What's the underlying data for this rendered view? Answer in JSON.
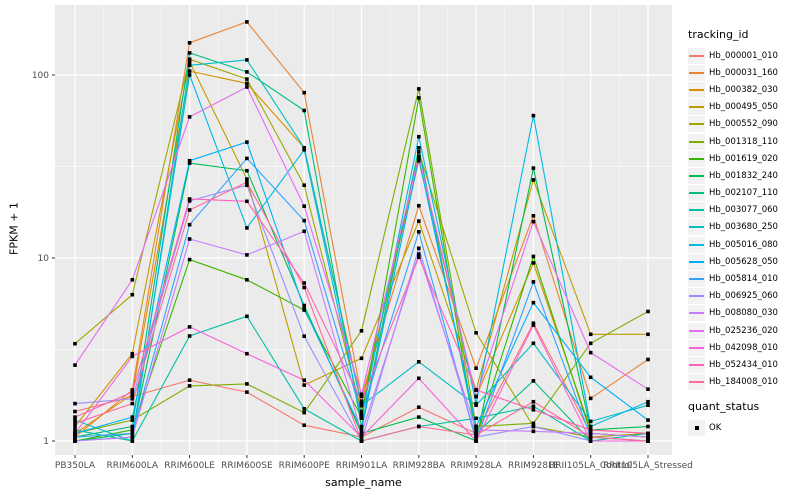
{
  "chart_data": {
    "type": "line",
    "title": "",
    "xlabel": "sample_name",
    "ylabel": "FPKM + 1",
    "y_scale": "log10",
    "ylim": [
      1,
      240
    ],
    "y_ticks": [
      1,
      10,
      100
    ],
    "y_minor_ticks": [
      3.162,
      31.62
    ],
    "grid": "on",
    "legend_position": "right",
    "point_marker": "black-square",
    "categories": [
      "PB350LA",
      "RRIM600LA",
      "RRIM600LE",
      "RRIM600SE",
      "RRIM600PE",
      "RRIM901LA",
      "RRIM928BA",
      "RRIM928LA",
      "RRIM928LE",
      "RRII105LA_Control",
      "RRII105LA_Stressed"
    ],
    "series": [
      {
        "name": "Hb_000001_010",
        "color": "#F8766D",
        "values": [
          1.45,
          1.75,
          2.15,
          1.85,
          1.22,
          1.05,
          1.53,
          1.1,
          4.4,
          1.1,
          1.05
        ]
      },
      {
        "name": "Hb_000031_160",
        "color": "#EA8331",
        "values": [
          1.05,
          1.9,
          150,
          195,
          80,
          1.75,
          19.3,
          2.5,
          17.0,
          1.71,
          2.79
        ]
      },
      {
        "name": "Hb_000382_030",
        "color": "#D89000",
        "values": [
          1.1,
          1.8,
          105,
          90,
          40,
          1.6,
          34,
          1.75,
          9.4,
          1.15,
          1.1
        ]
      },
      {
        "name": "Hb_000495_050",
        "color": "#C09B00",
        "values": [
          1.2,
          3.0,
          118,
          27,
          2.02,
          2.83,
          15.9,
          1.9,
          26.7,
          3.83,
          3.83
        ]
      },
      {
        "name": "Hb_000552_090",
        "color": "#A3A500",
        "values": [
          3.4,
          6.3,
          122,
          95,
          25,
          1.45,
          38,
          3.9,
          1.2,
          1.05,
          1.1
        ]
      },
      {
        "name": "Hb_001318_110",
        "color": "#7CAE00",
        "values": [
          1.1,
          1.3,
          2.0,
          2.05,
          1.43,
          4.0,
          84,
          1.2,
          1.25,
          3.42,
          5.1
        ]
      },
      {
        "name": "Hb_001619_020",
        "color": "#39B600",
        "values": [
          1.0,
          1.15,
          9.8,
          7.6,
          5.2,
          1.35,
          75,
          1.05,
          10.2,
          1.1,
          1.05
        ]
      },
      {
        "name": "Hb_001832_240",
        "color": "#00BB4E",
        "values": [
          1.0,
          1.1,
          33,
          30,
          5.5,
          1.1,
          1.35,
          1.0,
          31,
          1.15,
          1.2
        ]
      },
      {
        "name": "Hb_002107_110",
        "color": "#00BF7D",
        "values": [
          1.05,
          1.2,
          132,
          104,
          64,
          1.2,
          40,
          1.1,
          2.13,
          1.0,
          1.0
        ]
      },
      {
        "name": "Hb_003077_060",
        "color": "#00C1A3",
        "values": [
          1.15,
          1.0,
          3.75,
          4.8,
          1.5,
          1.0,
          1.2,
          1.33,
          1.55,
          1.0,
          1.1
        ]
      },
      {
        "name": "Hb_003680_250",
        "color": "#00BFC4",
        "values": [
          1.3,
          1.0,
          113,
          121,
          40,
          1.56,
          2.71,
          1.57,
          3.42,
          1.28,
          1.57
        ]
      },
      {
        "name": "Hb_005016_080",
        "color": "#00BAE0",
        "values": [
          1.0,
          1.05,
          100,
          14.6,
          39,
          1.33,
          46,
          1.6,
          60,
          1.2,
          1.64
        ]
      },
      {
        "name": "Hb_005628_050",
        "color": "#00B0F6",
        "values": [
          1.1,
          1.35,
          34,
          43,
          5.3,
          1.15,
          35,
          1.2,
          5.7,
          2.23,
          1.3
        ]
      },
      {
        "name": "Hb_005814_010",
        "color": "#35A2FF",
        "values": [
          1.05,
          1.1,
          15.2,
          35,
          16,
          1.4,
          13.9,
          1.0,
          7.4,
          1.05,
          1.0
        ]
      },
      {
        "name": "Hb_006925_060",
        "color": "#9590FF",
        "values": [
          1.6,
          1.7,
          20.5,
          25,
          3.74,
          1.0,
          11.3,
          1.05,
          1.2,
          1.0,
          1.0
        ]
      },
      {
        "name": "Hb_008080_030",
        "color": "#C77CFF",
        "values": [
          1.0,
          1.05,
          12.7,
          10.4,
          14,
          1.1,
          10.5,
          1.15,
          1.13,
          1.1,
          1.05
        ]
      },
      {
        "name": "Hb_025236_020",
        "color": "#E76BF3",
        "values": [
          2.6,
          7.6,
          59,
          86,
          19.2,
          1.8,
          36,
          1.75,
          15.8,
          3.04,
          1.92
        ]
      },
      {
        "name": "Hb_042098_010",
        "color": "#FA62DB",
        "values": [
          1.1,
          2.9,
          4.2,
          3.0,
          2.15,
          1.05,
          2.2,
          1.0,
          4.3,
          1.0,
          1.0
        ]
      },
      {
        "name": "Hb_052434_010",
        "color": "#FF62BC",
        "values": [
          1.35,
          1.85,
          21,
          20.4,
          7.3,
          1.65,
          10.1,
          1.9,
          1.48,
          1.15,
          1.1
        ]
      },
      {
        "name": "Hb_184008_010",
        "color": "#FF6A98",
        "values": [
          1.25,
          1.6,
          18.3,
          26,
          6.9,
          1.0,
          1.2,
          1.08,
          1.64,
          1.05,
          1.0
        ]
      }
    ]
  },
  "legend": {
    "tracking_title": "tracking_id",
    "quant_title": "quant_status",
    "quant_items": [
      {
        "label": "OK",
        "marker": "black-square"
      }
    ]
  },
  "colors": {
    "panel_bg": "#EBEBEB",
    "grid_major": "#FFFFFF",
    "grid_minor": "#FFFFFF",
    "tick_text": "#4D4D4D",
    "tick_mark": "#333333",
    "point": "#000000",
    "legend_key_bg": "#F2F2F2"
  }
}
